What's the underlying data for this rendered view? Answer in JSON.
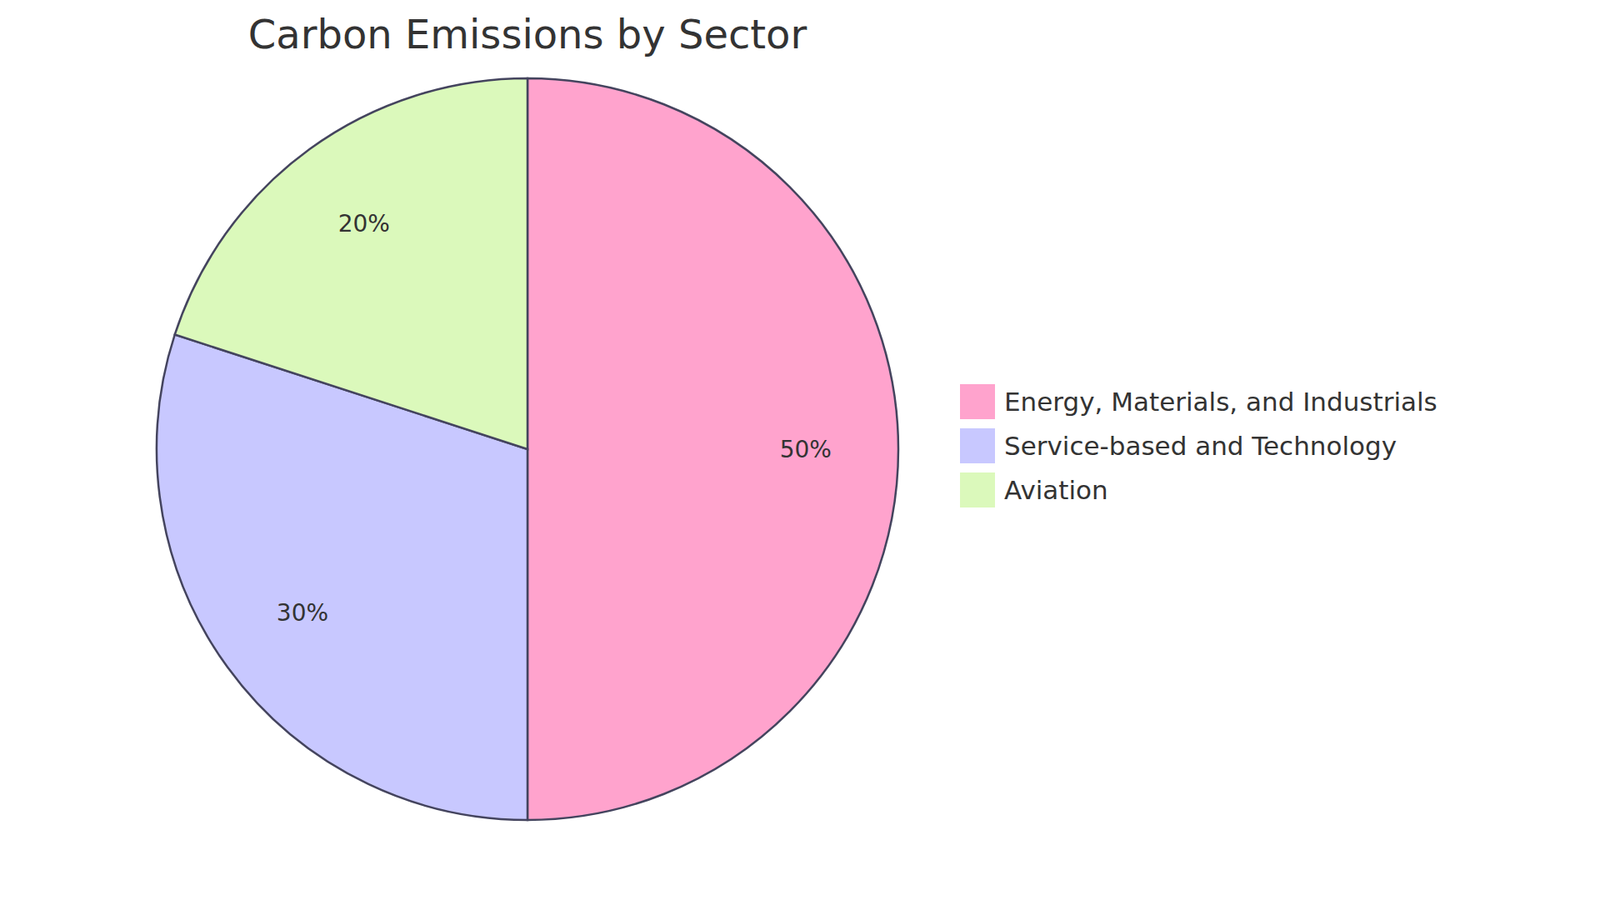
{
  "chart_data": {
    "type": "pie",
    "title": "Carbon Emissions by Sector",
    "categories": [
      "Energy, Materials, and Industrials",
      "Service-based and Technology",
      "Aviation"
    ],
    "values": [
      50,
      30,
      20
    ],
    "value_labels": [
      "50%",
      "30%",
      "20%"
    ],
    "colors": [
      "#ffa3cd",
      "#c8c8ff",
      "#dbf9bb"
    ],
    "data_labels": true,
    "legend": "right"
  }
}
